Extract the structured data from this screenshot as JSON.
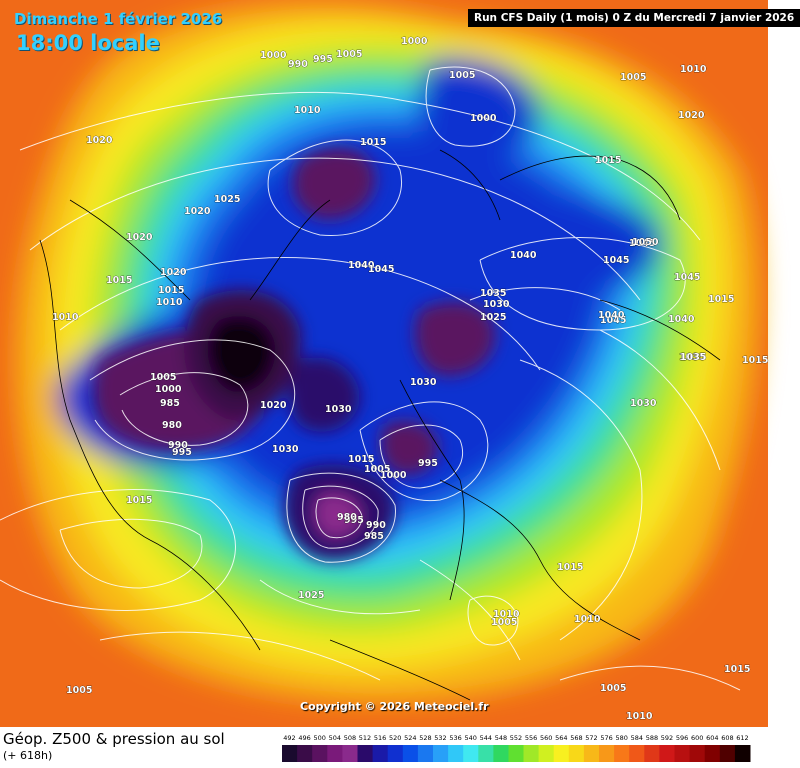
{
  "header": {
    "date_text": "Dimanche 1 février 2026",
    "time_text": "18:00 locale",
    "run_text": "Run CFS Daily (1 mois) 0 Z du Mercredi 7 janvier 2026"
  },
  "copyright": "Copyright © 2026 Meteociel.fr",
  "legend": {
    "title": "Géop. Z500 & pression au sol",
    "subtitle": "(+ 618h)",
    "ticks": [
      "492",
      "496",
      "500",
      "504",
      "508",
      "512",
      "516",
      "520",
      "524",
      "528",
      "532",
      "536",
      "540",
      "544",
      "548",
      "552",
      "556",
      "560",
      "564",
      "568",
      "572",
      "576",
      "580",
      "584",
      "588",
      "592",
      "596",
      "600",
      "604",
      "608",
      "612"
    ],
    "colors": [
      "#1a0a2e",
      "#3a0c48",
      "#5a1260",
      "#7a1a7a",
      "#8a2a8c",
      "#2a0a6a",
      "#1a1aa8",
      "#1030d0",
      "#0a50e8",
      "#1a78f0",
      "#28a0f8",
      "#30c8f8",
      "#40e8f0",
      "#38e0a8",
      "#30d860",
      "#60e030",
      "#a0e828",
      "#d0f020",
      "#f8f020",
      "#f8d818",
      "#f8b818",
      "#f89818",
      "#f87818",
      "#f05818",
      "#e03818",
      "#d01818",
      "#b81010",
      "#a00808",
      "#800000",
      "#500000",
      "#100000"
    ]
  },
  "isobar_labels": [
    "1000",
    "990",
    "995",
    "1005",
    "1000",
    "1005",
    "1000",
    "1010",
    "1005",
    "1010",
    "1020",
    "1015",
    "1020",
    "1025",
    "1020",
    "1020",
    "1015",
    "1015",
    "1010",
    "1020",
    "1010",
    "1005",
    "1000",
    "985",
    "980",
    "990",
    "995",
    "1015",
    "1040",
    "1045",
    "1035",
    "1030",
    "1025",
    "1030",
    "1030",
    "1040",
    "1045",
    "1045",
    "1050",
    "1045",
    "1035",
    "1030",
    "1025",
    "1040",
    "1045",
    "1040",
    "1015",
    "1035",
    "1015",
    "1030",
    "1020",
    "1015",
    "1005",
    "1000",
    "995",
    "995",
    "990",
    "985",
    "980",
    "1015",
    "1010",
    "1005",
    "1015",
    "1010",
    "1005",
    "1010",
    "1005",
    "1015"
  ]
}
